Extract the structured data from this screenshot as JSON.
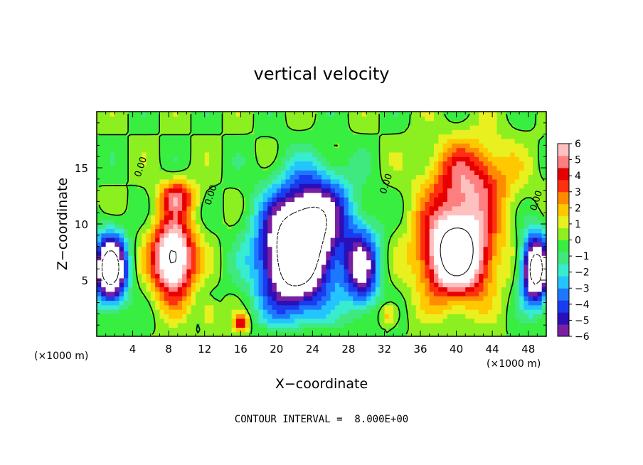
{
  "chart_data": {
    "type": "heatmap",
    "title": "vertical velocity",
    "xlabel": "X−coordinate",
    "ylabel": "Z−coordinate",
    "x_unit": "(×1000 m)",
    "x_unit_right": "(×1000 m)",
    "xlim": [
      0,
      50
    ],
    "ylim": [
      0,
      20
    ],
    "x_ticks": [
      4,
      8,
      12,
      16,
      20,
      24,
      28,
      32,
      36,
      40,
      44,
      48
    ],
    "y_ticks": [
      5,
      10,
      15
    ],
    "colorbar": {
      "range": [
        -6,
        6
      ],
      "ticks": [
        6,
        5,
        4,
        3,
        2,
        1,
        0,
        -1,
        -2,
        -3,
        -4,
        -5,
        -6
      ],
      "tick_labels": [
        "6",
        "5",
        "4",
        "3",
        "2",
        "1",
        "0",
        "−1",
        "−2",
        "−3",
        "−4",
        "−5",
        "−6"
      ],
      "colors": [
        "#7a1fa2",
        "#2b0fb8",
        "#1a3cf0",
        "#1e78ff",
        "#24c4ff",
        "#38ecd0",
        "#40e880",
        "#38ee40",
        "#8cf020",
        "#e8f020",
        "#ffc800",
        "#ff8c00",
        "#ff3010",
        "#e80000",
        "#ff7f80",
        "#ffc0c0"
      ],
      "saturated_color": "#ffffff"
    },
    "contour_labels": [
      "0.00",
      "0.00",
      "0.00",
      "0.00"
    ],
    "footer": "CONTOUR INTERVAL =  8.000E+00",
    "features": [
      {
        "kind": "updraft",
        "x": 8.5,
        "z": 7,
        "sx": 2.3,
        "sz": 3.5,
        "amp": 9
      },
      {
        "kind": "updraft",
        "x": 40,
        "z": 7.5,
        "sx": 3.8,
        "sz": 4,
        "amp": 10
      },
      {
        "kind": "updraft",
        "x": 41.5,
        "z": 14,
        "sx": 4.5,
        "sz": 3.5,
        "amp": 4.5
      },
      {
        "kind": "updraft",
        "x": 9,
        "z": 12.5,
        "sx": 2,
        "sz": 1.5,
        "amp": 4
      },
      {
        "kind": "updraft",
        "x": 1.5,
        "z": 6,
        "sx": 1.8,
        "sz": 3,
        "amp": -10
      },
      {
        "kind": "updraft",
        "x": 22,
        "z": 7,
        "sx": 4,
        "sz": 5,
        "amp": -10
      },
      {
        "kind": "updraft",
        "x": 24.5,
        "z": 11,
        "sx": 4,
        "sz": 4,
        "amp": -5
      },
      {
        "kind": "updraft",
        "x": 29.5,
        "z": 6,
        "sx": 2,
        "sz": 3.5,
        "amp": -6
      },
      {
        "kind": "updraft",
        "x": 48.8,
        "z": 6,
        "sx": 1.5,
        "sz": 3,
        "amp": -10
      },
      {
        "kind": "updraft",
        "x": 16,
        "z": 1,
        "sx": 0.8,
        "sz": 0.9,
        "amp": 5
      },
      {
        "kind": "updraft",
        "x": 12.5,
        "z": 2,
        "sx": 1,
        "sz": 1.2,
        "amp": 2
      },
      {
        "kind": "updraft",
        "x": 32.5,
        "z": 2,
        "sx": 1,
        "sz": 1,
        "amp": 2.5
      }
    ]
  }
}
